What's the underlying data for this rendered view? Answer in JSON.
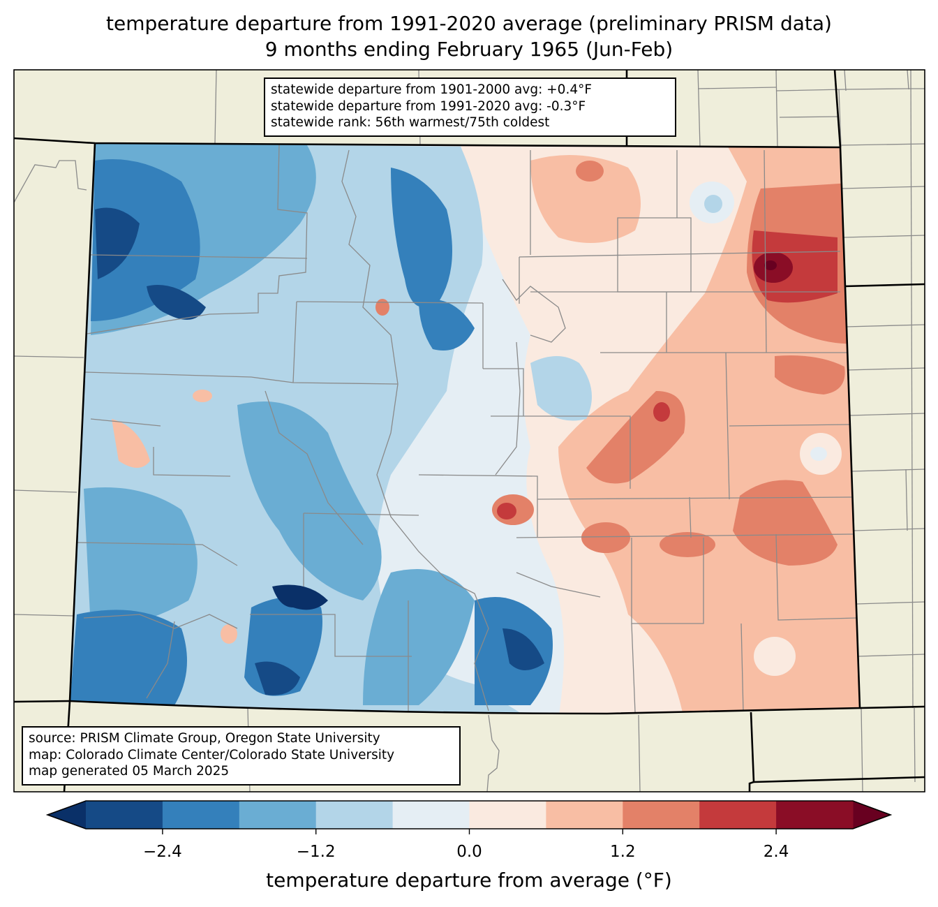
{
  "title": {
    "line1": "temperature departure from 1991-2020 average (preliminary PRISM data)",
    "line2": "9 months ending February 1965 (Jun-Feb)"
  },
  "stats_box": {
    "line1": "statewide departure from 1901-2000 avg: +0.4°F",
    "line2": "statewide departure from 1991-2020 avg: -0.3°F",
    "line3": "statewide rank: 56th warmest/75th coldest"
  },
  "credits_box": {
    "line1": "source: PRISM Climate Group, Oregon State University",
    "line2": "map: Colorado Climate Center/Colorado State University",
    "line3": "map generated 05 March 2025"
  },
  "colorbar": {
    "label": "temperature departure from average (°F)",
    "ticks": [
      "−2.4",
      "−1.2",
      "0.0",
      "1.2",
      "2.4"
    ],
    "tick_values": [
      -2.4,
      -1.2,
      0.0,
      1.2,
      2.4
    ],
    "bounds": [
      -3.0,
      -2.4,
      -1.8,
      -1.2,
      -0.6,
      0.0,
      0.6,
      1.2,
      1.8,
      2.4,
      3.0
    ],
    "colors": [
      "#154a86",
      "#3480bb",
      "#6aadd3",
      "#b3d5e8",
      "#e5eef4",
      "#faeae0",
      "#f8bea4",
      "#e38168",
      "#c43a3c",
      "#8a0d26"
    ],
    "under_color": "#0a3068",
    "over_color": "#680020"
  },
  "map_colors": {
    "land": "#efeedb",
    "county_line": "#8a8a8a",
    "state_line": "#000000"
  },
  "chart_data": {
    "type": "heatmap",
    "title": "temperature departure from 1991-2020 average (preliminary PRISM data) — 9 months ending February 1965 (Jun-Feb)",
    "region": "Colorado",
    "units": "°F",
    "levels": [
      -3.0,
      -2.4,
      -1.8,
      -1.2,
      -0.6,
      0.0,
      0.6,
      1.2,
      1.8,
      2.4,
      3.0
    ],
    "statewide_departure_1901_2000": 0.4,
    "statewide_departure_1991_2020": -0.3,
    "pattern": [
      {
        "area": "northwest",
        "value": -2.2
      },
      {
        "area": "north-central mountains",
        "value": -1.3
      },
      {
        "area": "west-central",
        "value": -0.5
      },
      {
        "area": "southwest",
        "value": -1.5
      },
      {
        "area": "San Juan mountains",
        "value": -2.7
      },
      {
        "area": "south-central",
        "value": -1.5
      },
      {
        "area": "Front Range corridor",
        "value": 0.1
      },
      {
        "area": "northeast plains",
        "value": 0.9
      },
      {
        "area": "northeast corner",
        "value": 2.5
      },
      {
        "area": "east-central plains",
        "value": 1.3
      },
      {
        "area": "southeast plains",
        "value": 1.0
      }
    ]
  }
}
